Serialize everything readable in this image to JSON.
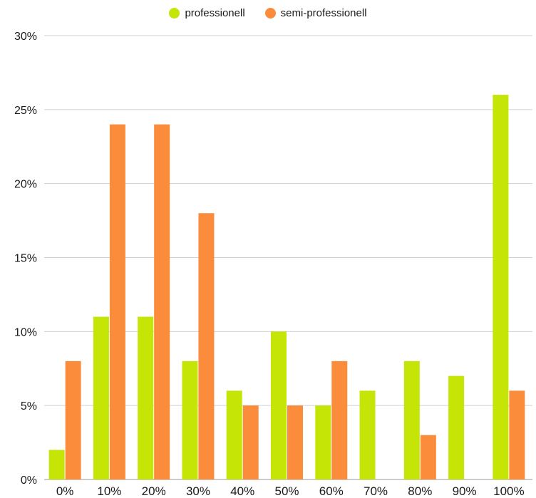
{
  "chart_data": {
    "type": "bar",
    "categories": [
      "0%",
      "10%",
      "20%",
      "30%",
      "40%",
      "50%",
      "60%",
      "70%",
      "80%",
      "90%",
      "100%"
    ],
    "series": [
      {
        "name": "professionell",
        "color": "#c5e506",
        "values": [
          2,
          11,
          11,
          8,
          6,
          10,
          5,
          6,
          8,
          7,
          26
        ]
      },
      {
        "name": "semi-professionell",
        "color": "#fa8c3c",
        "values": [
          8,
          24,
          24,
          18,
          5,
          5,
          8,
          0,
          3,
          0,
          6
        ]
      }
    ],
    "ylim": [
      0,
      30
    ],
    "yticks": [
      0,
      5,
      10,
      15,
      20,
      25,
      30
    ],
    "ytick_labels": [
      "0%",
      "5%",
      "10%",
      "15%",
      "20%",
      "25%",
      "30%"
    ],
    "grid": true,
    "legend_position": "top-center",
    "title": "",
    "xlabel": "",
    "ylabel": ""
  }
}
